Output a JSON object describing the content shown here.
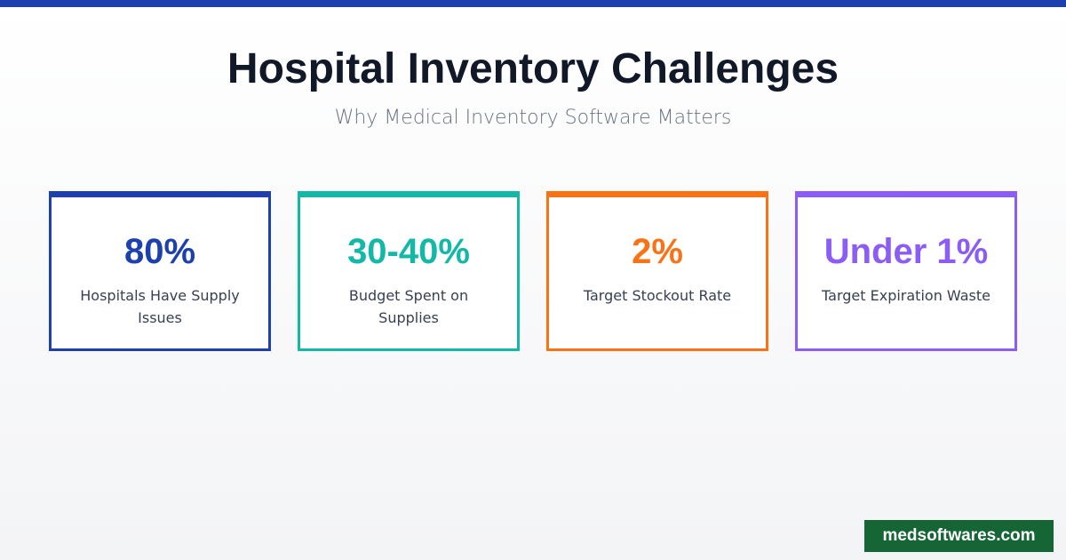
{
  "header": {
    "title": "Hospital Inventory Challenges",
    "subtitle": "Why Medical Inventory Software Matters"
  },
  "cards": [
    {
      "value": "80%",
      "label": "Hospitals Have Supply Issues",
      "color": "#1e40af"
    },
    {
      "value": "30-40%",
      "label": "Budget Spent on Supplies",
      "color": "#14b8a6"
    },
    {
      "value": "2%",
      "label": "Target Stockout Rate",
      "color": "#f97316"
    },
    {
      "value": "Under 1%",
      "label": "Target Expiration Waste",
      "color": "#8b5cf6"
    }
  ],
  "footer": {
    "brand": "medsoftwares.com"
  }
}
